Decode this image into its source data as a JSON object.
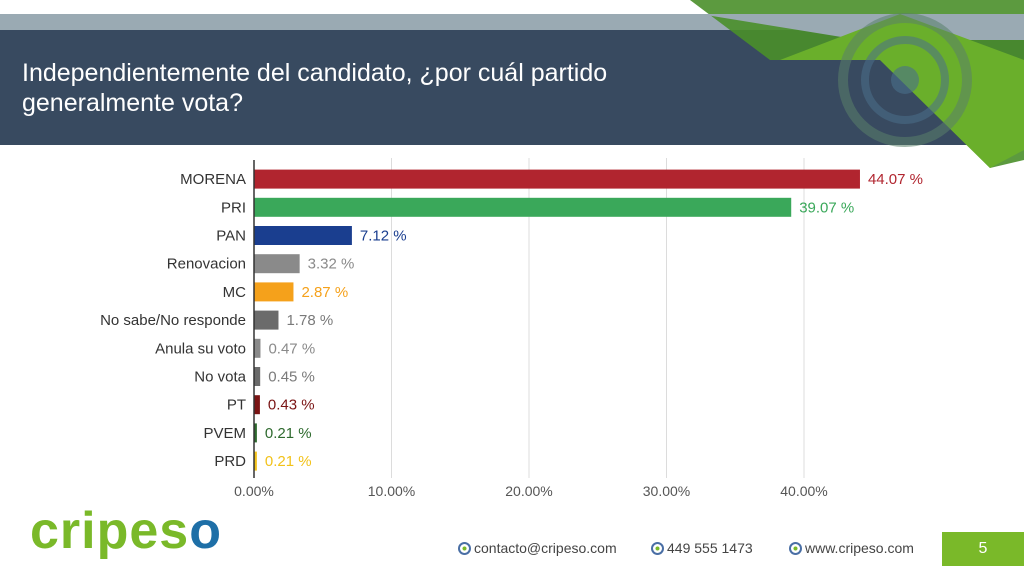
{
  "slide": {
    "title": "Independientemente del candidato, ¿por cuál partido generalmente vota?",
    "page_number": "5"
  },
  "brand": {
    "part1": "cripes",
    "part2": "o"
  },
  "footer": {
    "email": "contacto@cripeso.com",
    "phone": "449 555 1473",
    "web": "www.cripeso.com"
  },
  "colors": {
    "header": "#384a60",
    "accent_green": "#7ab929",
    "brand_blue": "#1e6fa7"
  },
  "chart_data": {
    "type": "bar",
    "orientation": "horizontal",
    "categories": [
      "MORENA",
      "PRI",
      "PAN",
      "Renovacion",
      "MC",
      "No sabe/No responde",
      "Anula su voto",
      "No vota",
      "PT",
      "PVEM",
      "PRD"
    ],
    "values": [
      44.07,
      39.07,
      7.12,
      3.32,
      2.87,
      1.78,
      0.47,
      0.45,
      0.43,
      0.21,
      0.21
    ],
    "value_labels": [
      "44.07 %",
      "39.07 %",
      "7.12 %",
      "3.32 %",
      "2.87 %",
      "1.78 %",
      "0.47 %",
      "0.45 %",
      "0.43 %",
      "0.21 %",
      "0.21 %"
    ],
    "colors": [
      "#b1252f",
      "#3aa85a",
      "#1a3e8f",
      "#8a8a8a",
      "#f5a11b",
      "#6b6b6b",
      "#8a8a8a",
      "#6b6b6b",
      "#7a1414",
      "#2e6a2e",
      "#f2c21a"
    ],
    "label_colors": [
      "#b1252f",
      "#3aa85a",
      "#1a3e8f",
      "#8a8a8a",
      "#f5a11b",
      "#7a7a7a",
      "#8a8a8a",
      "#7a7a7a",
      "#7a1414",
      "#2e6a2e",
      "#f2c21a"
    ],
    "xticks": [
      "0.00%",
      "10.00%",
      "20.00%",
      "30.00%",
      "40.00%"
    ],
    "xlim": [
      0,
      44
    ],
    "grid": true
  }
}
